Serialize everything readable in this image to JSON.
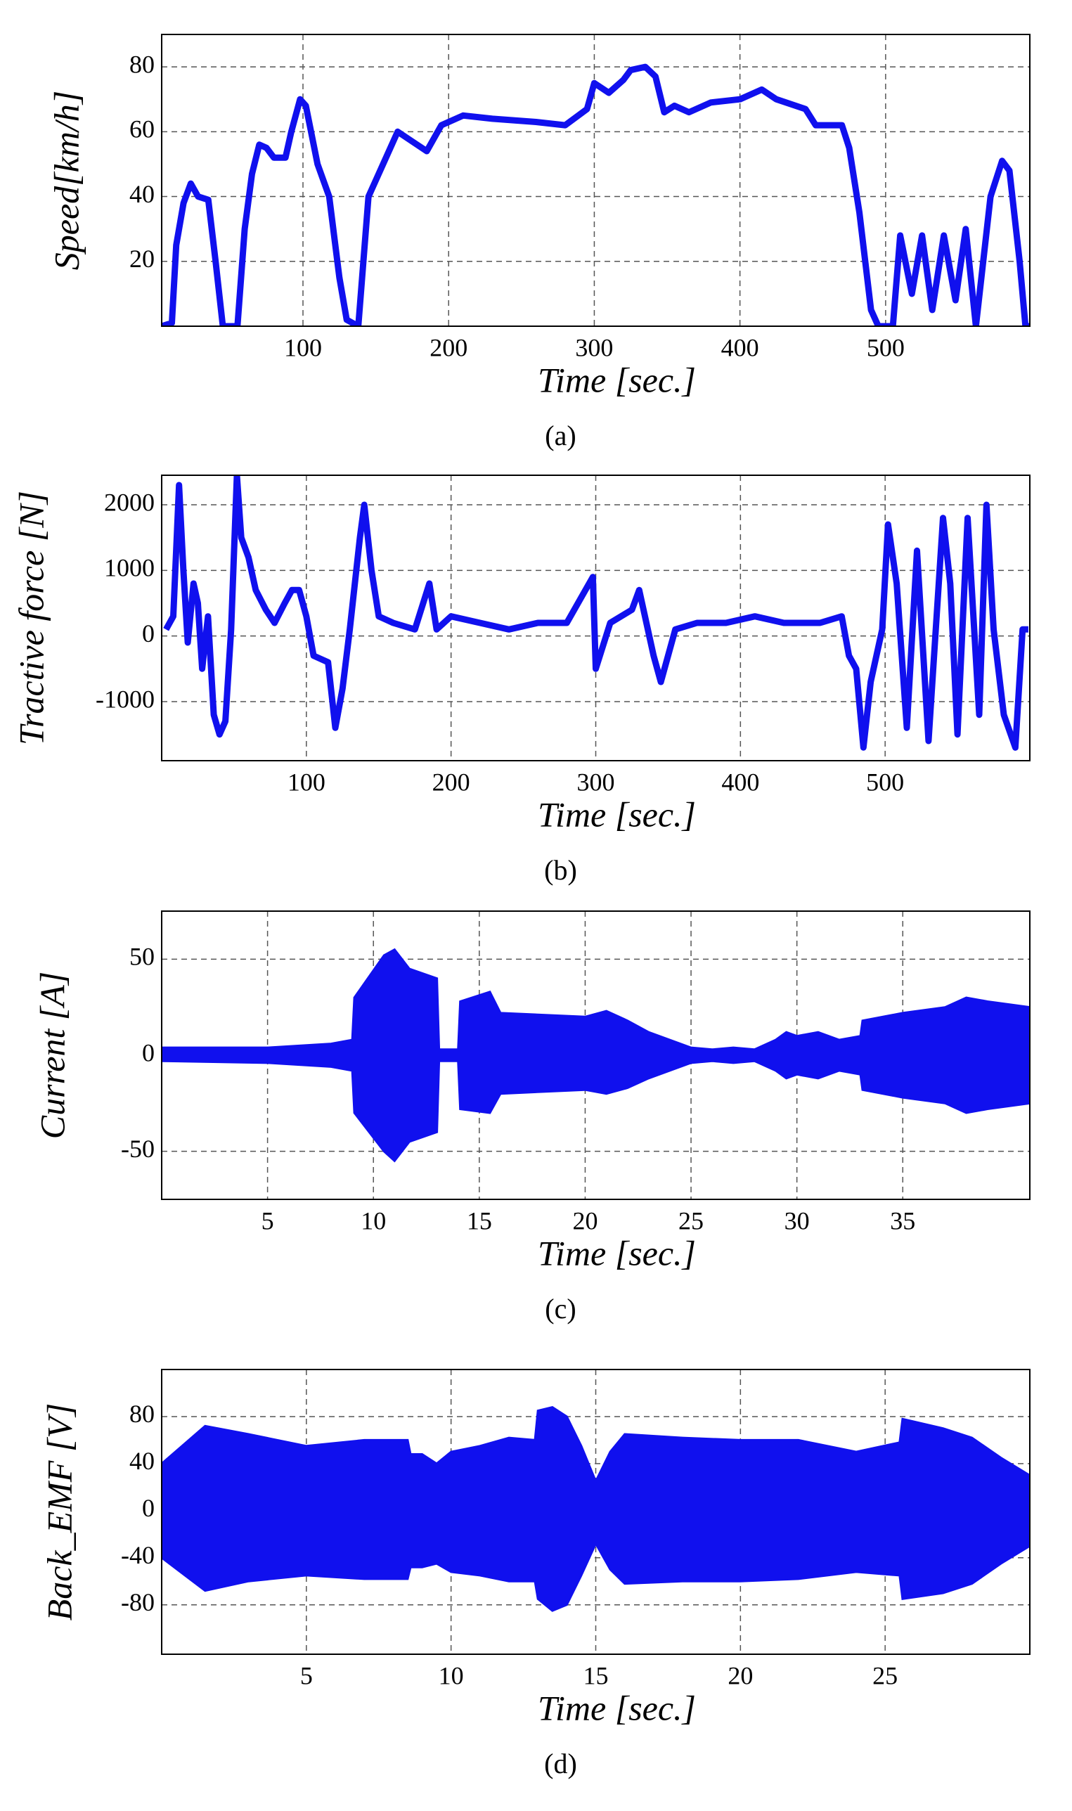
{
  "chart_data": [
    {
      "type": "line",
      "xlabel": "Time [sec.]",
      "ylabel": "Speed[km/h]",
      "caption": "(a)",
      "xlim": [
        3,
        599
      ],
      "ylim": [
        0,
        90
      ],
      "xticks": [
        100,
        200,
        300,
        400,
        500
      ],
      "yticks": [
        20,
        40,
        60,
        80
      ],
      "grid": true,
      "x": [
        3,
        10,
        13,
        18,
        23,
        28,
        35,
        40,
        45,
        55,
        60,
        65,
        70,
        75,
        80,
        88,
        92,
        98,
        102,
        110,
        118,
        125,
        130,
        138,
        145,
        155,
        165,
        175,
        185,
        195,
        210,
        230,
        260,
        280,
        295,
        300,
        310,
        320,
        325,
        335,
        342,
        348,
        355,
        365,
        380,
        400,
        415,
        425,
        445,
        452,
        470,
        475,
        482,
        490,
        495,
        505,
        510,
        518,
        525,
        532,
        540,
        548,
        555,
        562,
        572,
        580,
        585,
        592,
        596,
        599
      ],
      "series": [
        {
          "color": "#1010ee",
          "values": [
            0,
            1,
            25,
            38,
            44,
            40,
            39,
            20,
            0,
            0,
            30,
            47,
            56,
            55,
            52,
            52,
            60,
            70,
            68,
            50,
            40,
            15,
            2,
            0,
            40,
            50,
            60,
            57,
            54,
            62,
            65,
            64,
            63,
            62,
            67,
            75,
            72,
            76,
            79,
            80,
            77,
            66,
            68,
            66,
            69,
            70,
            73,
            70,
            67,
            62,
            62,
            55,
            35,
            5,
            0,
            0,
            28,
            10,
            28,
            5,
            28,
            8,
            30,
            0,
            40,
            51,
            48,
            20,
            0,
            0
          ]
        }
      ]
    },
    {
      "type": "line",
      "xlabel": "Time [sec.]",
      "ylabel": "Tractive force [N]",
      "caption": "(b)",
      "xlim": [
        0,
        600
      ],
      "ylim": [
        -1900,
        2450
      ],
      "xticks": [
        100,
        200,
        300,
        400,
        500
      ],
      "yticks": [
        -1000,
        0,
        1000,
        2000
      ],
      "grid": true,
      "x": [
        3,
        8,
        12,
        15,
        18,
        22,
        25,
        28,
        32,
        36,
        40,
        44,
        48,
        52,
        55,
        60,
        65,
        72,
        78,
        85,
        90,
        95,
        100,
        105,
        115,
        120,
        125,
        130,
        137,
        140,
        145,
        150,
        160,
        175,
        185,
        190,
        200,
        220,
        240,
        260,
        280,
        298,
        300,
        310,
        325,
        330,
        340,
        345,
        355,
        370,
        390,
        410,
        430,
        455,
        470,
        475,
        480,
        485,
        490,
        498,
        502,
        508,
        515,
        522,
        530,
        540,
        545,
        550,
        557,
        565,
        570,
        575,
        582,
        590,
        595,
        599
      ],
      "series": [
        {
          "color": "#1010ee",
          "values": [
            100,
            300,
            2300,
            1000,
            -100,
            800,
            500,
            -500,
            300,
            -1200,
            -1500,
            -1300,
            100,
            2450,
            1500,
            1200,
            700,
            400,
            200,
            500,
            700,
            700,
            300,
            -300,
            -400,
            -1400,
            -800,
            100,
            1500,
            2000,
            1000,
            300,
            200,
            100,
            800,
            100,
            300,
            200,
            100,
            200,
            200,
            900,
            -500,
            200,
            400,
            700,
            -300,
            -700,
            100,
            200,
            200,
            300,
            200,
            200,
            300,
            -300,
            -500,
            -1700,
            -700,
            100,
            1700,
            800,
            -1400,
            1300,
            -1600,
            1800,
            800,
            -1500,
            1800,
            -1200,
            2000,
            100,
            -1200,
            -1700,
            100,
            100
          ]
        }
      ]
    },
    {
      "type": "area",
      "xlabel": "Time [sec.]",
      "ylabel": "Current [A]",
      "caption": "(c)",
      "xlim": [
        0,
        41
      ],
      "ylim": [
        -75,
        75
      ],
      "xticks": [
        5,
        10,
        15,
        20,
        25,
        30,
        35
      ],
      "yticks": [
        -50,
        0,
        50
      ],
      "grid": true,
      "x": [
        0,
        5,
        8,
        9,
        9.1,
        10.5,
        11,
        11.7,
        13,
        13.1,
        14,
        14.1,
        15.5,
        16,
        20,
        21,
        22,
        23,
        25,
        26,
        27,
        28,
        29,
        29.5,
        30,
        31,
        32,
        33,
        33.1,
        35,
        37,
        38,
        39,
        41
      ],
      "series": [
        {
          "color": "#1010ee",
          "values": [
            4,
            4,
            6,
            8,
            30,
            52,
            55,
            45,
            40,
            3,
            3,
            28,
            33,
            22,
            20,
            23,
            18,
            12,
            4,
            3,
            4,
            3,
            8,
            12,
            10,
            12,
            8,
            10,
            18,
            22,
            25,
            30,
            28,
            25
          ]
        },
        {
          "color": "#1010ee",
          "values": [
            -3,
            -4,
            -6,
            -8,
            -30,
            -50,
            -55,
            -45,
            -40,
            -3,
            -3,
            -28,
            -30,
            -20,
            -18,
            -20,
            -17,
            -12,
            -4,
            -3,
            -4,
            -3,
            -8,
            -12,
            -10,
            -12,
            -8,
            -10,
            -18,
            -22,
            -25,
            -30,
            -28,
            -25
          ]
        }
      ]
    },
    {
      "type": "area",
      "xlabel": "Time [sec.]",
      "ylabel": "Back_EMF [V]",
      "caption": "(d)",
      "xlim": [
        0,
        30
      ],
      "ylim": [
        -122,
        120
      ],
      "xticks": [
        5,
        10,
        15,
        20,
        25
      ],
      "yticks": [
        -80,
        -40,
        0,
        40,
        80
      ],
      "grid": true,
      "x": [
        0,
        1.5,
        3,
        5,
        7,
        8.5,
        8.6,
        9,
        9.5,
        10,
        11,
        12,
        12.9,
        13,
        13.5,
        14,
        14.5,
        15,
        15.5,
        16,
        18,
        20,
        22,
        24,
        25.5,
        25.6,
        27,
        28,
        29,
        30
      ],
      "series": [
        {
          "color": "#1010ee",
          "values": [
            40,
            72,
            65,
            55,
            60,
            60,
            48,
            48,
            40,
            50,
            55,
            62,
            60,
            85,
            88,
            80,
            55,
            25,
            50,
            65,
            62,
            60,
            60,
            50,
            58,
            78,
            70,
            62,
            45,
            30
          ]
        },
        {
          "color": "#1010ee",
          "values": [
            -40,
            -68,
            -60,
            -55,
            -58,
            -58,
            -48,
            -48,
            -45,
            -52,
            -55,
            -60,
            -60,
            -75,
            -85,
            -80,
            -55,
            -28,
            -50,
            -62,
            -60,
            -60,
            -58,
            -52,
            -55,
            -75,
            -70,
            -62,
            -45,
            -30
          ]
        }
      ]
    }
  ]
}
